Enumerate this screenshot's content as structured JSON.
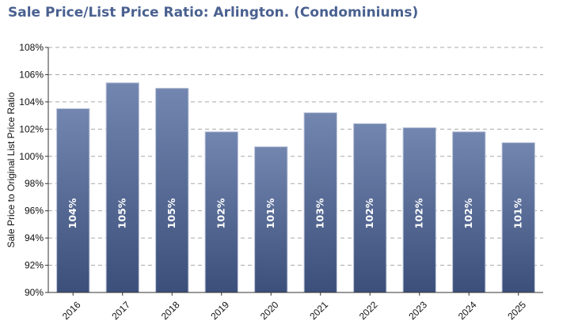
{
  "chart_data": {
    "type": "bar",
    "title": "Sale Price/List Price Ratio: Arlington. (Condominiums)",
    "ylabel": "Sale Price to Original List Price Ratio",
    "xlabel": "",
    "ylim": [
      90,
      108
    ],
    "yticks": [
      "90%",
      "92%",
      "94%",
      "96%",
      "98%",
      "100%",
      "102%",
      "104%",
      "106%",
      "108%"
    ],
    "ytick_values": [
      90,
      92,
      94,
      96,
      98,
      100,
      102,
      104,
      106,
      108
    ],
    "categories": [
      "2016",
      "2017",
      "2018",
      "2019",
      "2020",
      "2021",
      "2022",
      "2023",
      "2024",
      "2025"
    ],
    "values": [
      103.5,
      105.4,
      105.0,
      101.8,
      100.7,
      103.2,
      102.4,
      102.1,
      101.8,
      101.0
    ],
    "data_labels": [
      "104%",
      "105%",
      "105%",
      "102%",
      "101%",
      "103%",
      "102%",
      "102%",
      "102%",
      "101%"
    ],
    "grid": true,
    "colors": {
      "bar_top": "#7286b0",
      "bar_bottom": "#3c4f7a",
      "bar_stroke": "#b7c1d6",
      "grid": "#a9a9a9",
      "title": "#4a6190"
    }
  }
}
